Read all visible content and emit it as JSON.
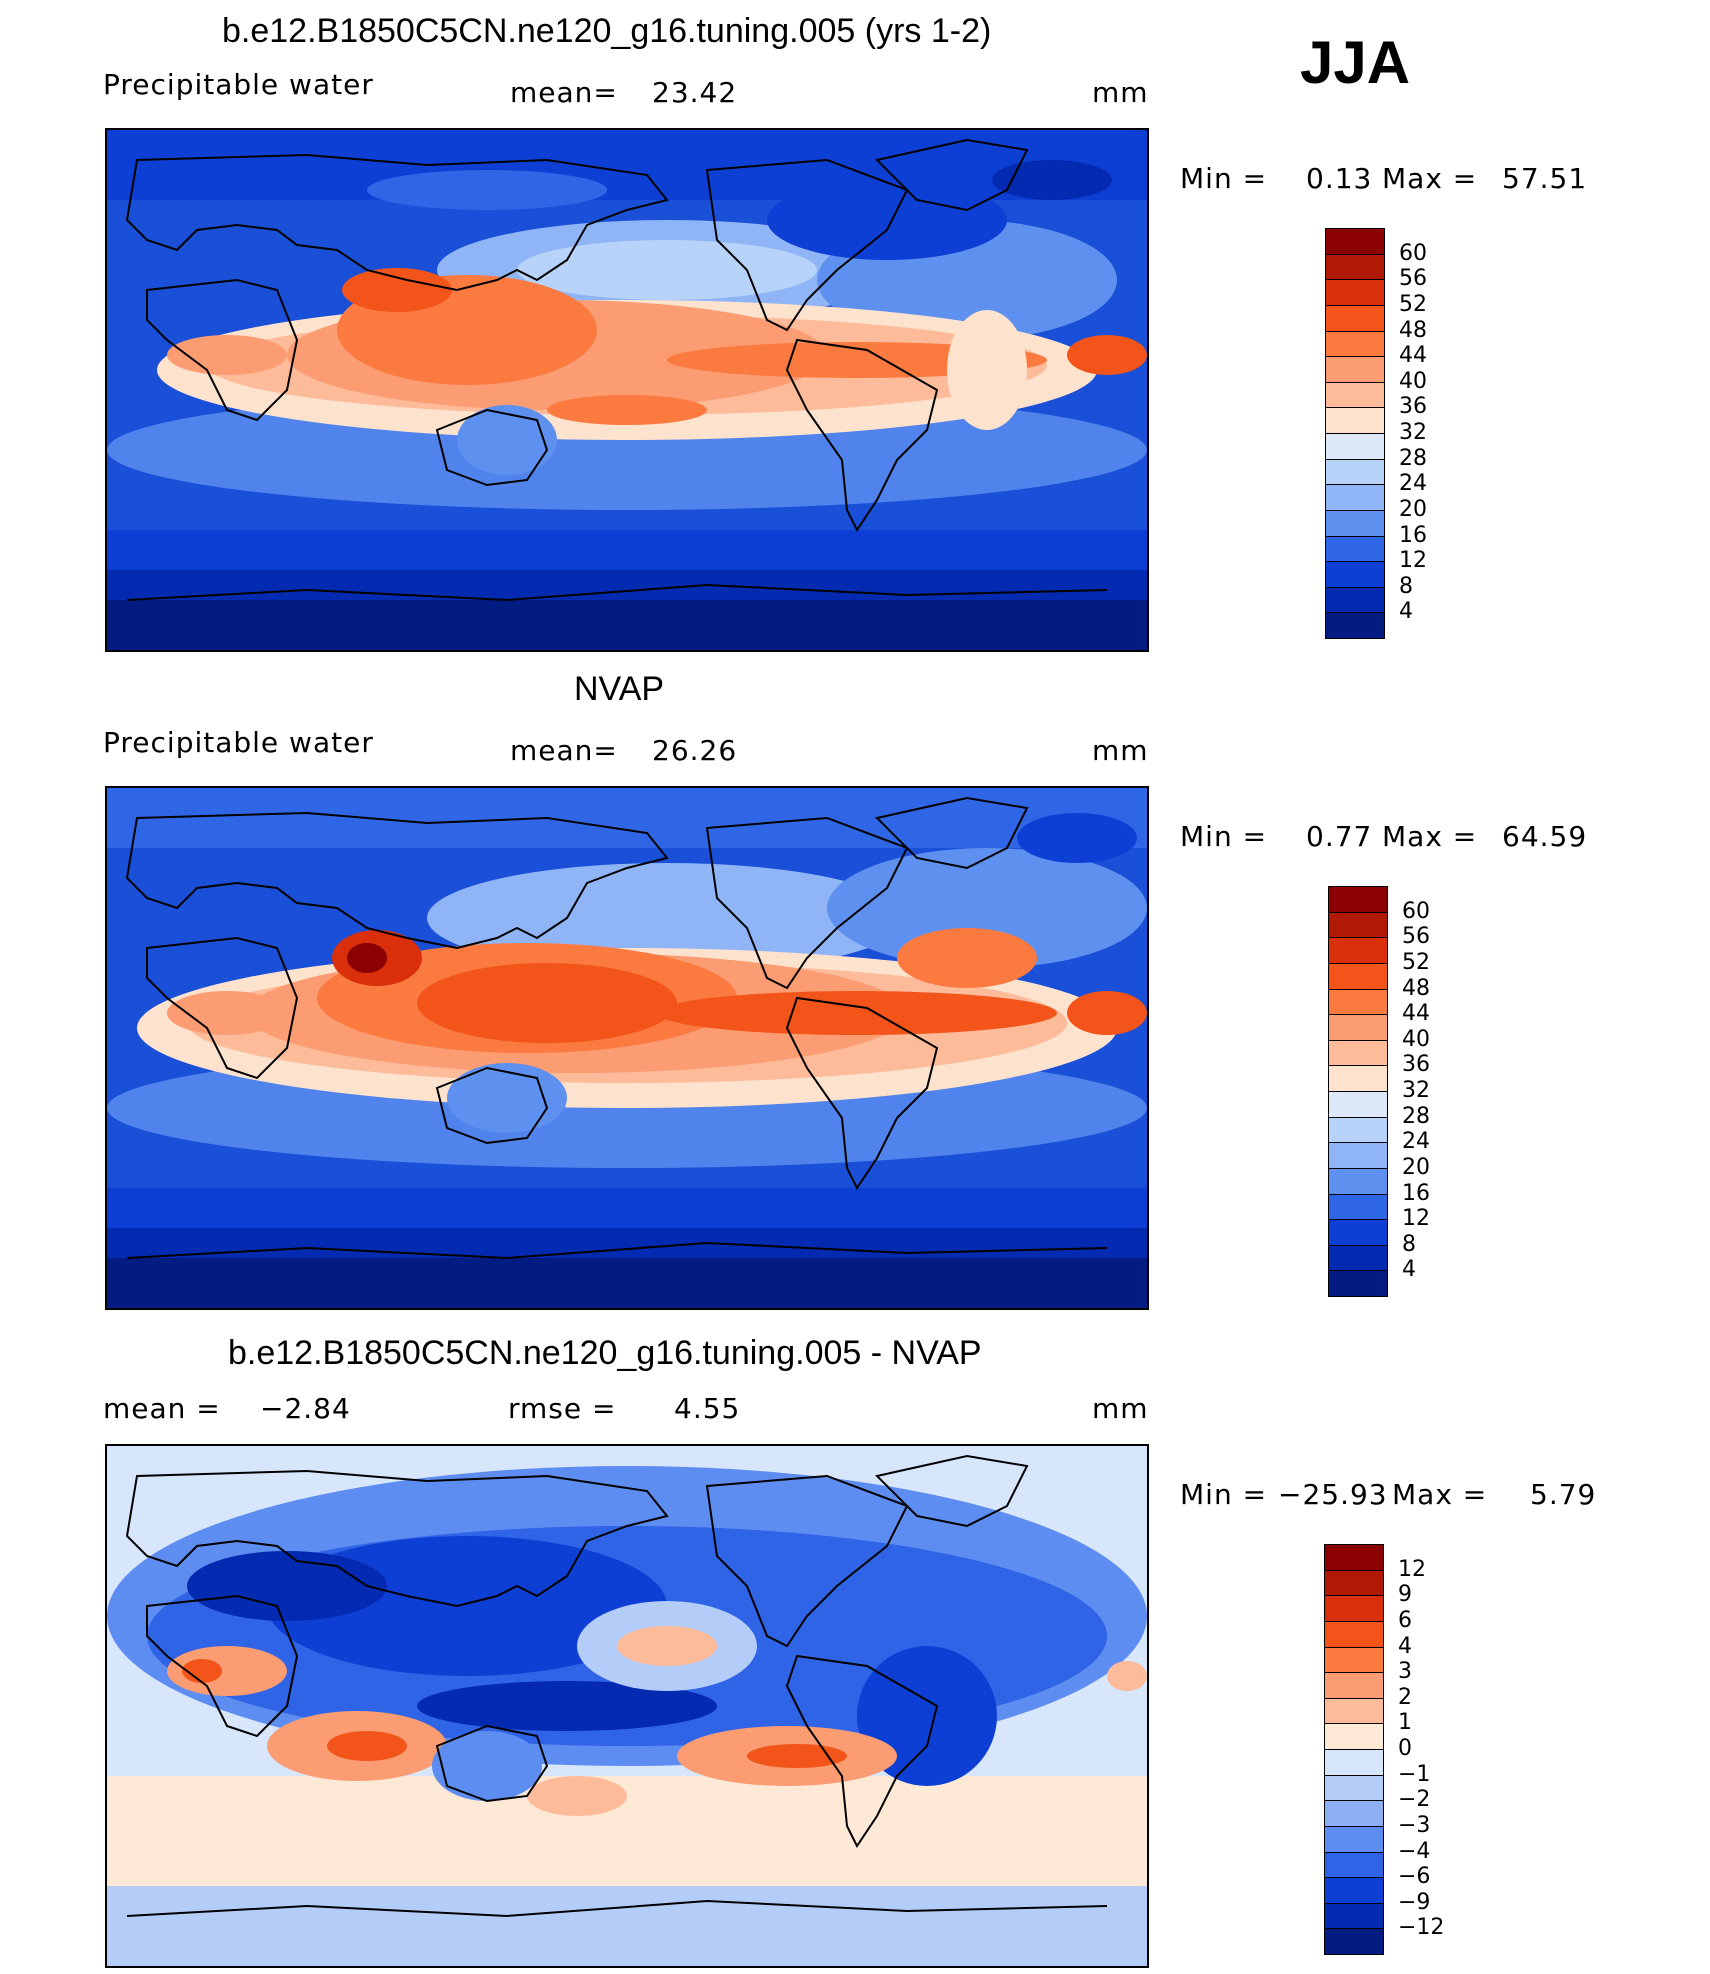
{
  "season": "JJA",
  "panels": [
    {
      "id": "model",
      "title": "b.e12.B1850C5CN.ne120_g16.tuning.005 (yrs 1-2)",
      "left_label": "Precipitable  water",
      "mid_label": "mean=",
      "mid_value": "23.42",
      "units": "mm",
      "min_label": "Min  =",
      "min_value": "0.13",
      "max_label": "Max  =",
      "max_value": "57.51",
      "colorbar_labels": [
        "60",
        "56",
        "52",
        "48",
        "44",
        "40",
        "36",
        "32",
        "28",
        "24",
        "20",
        "16",
        "12",
        "8",
        "4"
      ],
      "colorbar_colors": [
        "#8b0000",
        "#b01a05",
        "#d92f0a",
        "#f2541a",
        "#fb7a3f",
        "#fc9c72",
        "#fdbb9a",
        "#fde2ce",
        "#dde9fb",
        "#b8d3fa",
        "#8fb5f6",
        "#5e90f0",
        "#2f66e6",
        "#0e3fd4",
        "#032ab0",
        "#021c82"
      ]
    },
    {
      "id": "obs",
      "title": "NVAP",
      "left_label": "Precipitable  water",
      "mid_label": "mean=",
      "mid_value": "26.26",
      "units": "mm",
      "min_label": "Min  =",
      "min_value": "0.77",
      "max_label": "Max  =",
      "max_value": "64.59",
      "colorbar_labels": [
        "60",
        "56",
        "52",
        "48",
        "44",
        "40",
        "36",
        "32",
        "28",
        "24",
        "20",
        "16",
        "12",
        "8",
        "4"
      ],
      "colorbar_colors": [
        "#8b0000",
        "#b01a05",
        "#d92f0a",
        "#f2541a",
        "#fb7a3f",
        "#fc9c72",
        "#fdbb9a",
        "#fde2ce",
        "#dde9fb",
        "#b8d3fa",
        "#8fb5f6",
        "#5e90f0",
        "#2f66e6",
        "#0e3fd4",
        "#032ab0",
        "#021c82"
      ]
    },
    {
      "id": "diff",
      "title": "b.e12.B1850C5CN.ne120_g16.tuning.005 - NVAP",
      "left_label": "mean  =",
      "left_value": "−2.84",
      "mid_label": "rmse  =",
      "mid_value": "4.55",
      "units": "mm",
      "min_label": "Min  =",
      "min_value": "−25.93",
      "max_label": "Max  =",
      "max_value": "5.79",
      "colorbar_labels": [
        "12",
        "9",
        "6",
        "4",
        "3",
        "2",
        "1",
        "0",
        "−1",
        "−2",
        "−3",
        "−4",
        "−6",
        "−9",
        "−12"
      ],
      "colorbar_colors": [
        "#8b0000",
        "#b01a05",
        "#d92f0a",
        "#f2541a",
        "#fb7a3f",
        "#fc9c72",
        "#fdbb9a",
        "#fde9d6",
        "#d8e6fb",
        "#b4cdf8",
        "#8db0f5",
        "#5d8df0",
        "#2f64e6",
        "#0e3fd4",
        "#032ab0",
        "#021c82"
      ]
    }
  ]
}
